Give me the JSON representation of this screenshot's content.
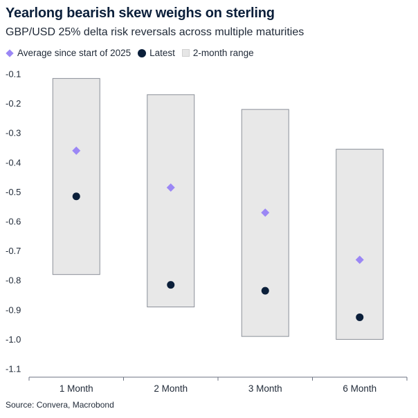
{
  "title": "Yearlong bearish skew weighs on sterling",
  "subtitle": "GBP/USD 25% delta risk reversals across multiple maturities",
  "legend": {
    "average": "Average since start of 2025",
    "latest": "Latest",
    "range": "2-month range"
  },
  "source": "Source: Convera, Macrobond",
  "colors": {
    "average": "#9b87f5",
    "latest": "#0b1f3a",
    "range_fill": "#e8e8e8",
    "range_stroke": "#8a8f98"
  },
  "chart_data": {
    "type": "range-dot",
    "categories": [
      "1 Month",
      "2 Month",
      "3 Month",
      "6 Month"
    ],
    "series": [
      {
        "name": "Average since start of 2025",
        "values": [
          -0.36,
          -0.485,
          -0.57,
          -0.73
        ]
      },
      {
        "name": "Latest",
        "values": [
          -0.515,
          -0.815,
          -0.835,
          -0.925
        ]
      }
    ],
    "range": [
      {
        "low": -0.78,
        "high": -0.115
      },
      {
        "low": -0.89,
        "high": -0.17
      },
      {
        "low": -0.99,
        "high": -0.22
      },
      {
        "low": -1.0,
        "high": -0.355
      }
    ],
    "range_name": "2-month range",
    "ylim": [
      -1.1,
      -0.1
    ],
    "yticks": [
      "-0.1",
      "-0.2",
      "-0.3",
      "-0.4",
      "-0.5",
      "-0.6",
      "-0.7",
      "-0.8",
      "-0.9",
      "-1.0",
      "-1.1"
    ],
    "grid": false,
    "legend_position": "top-left"
  }
}
